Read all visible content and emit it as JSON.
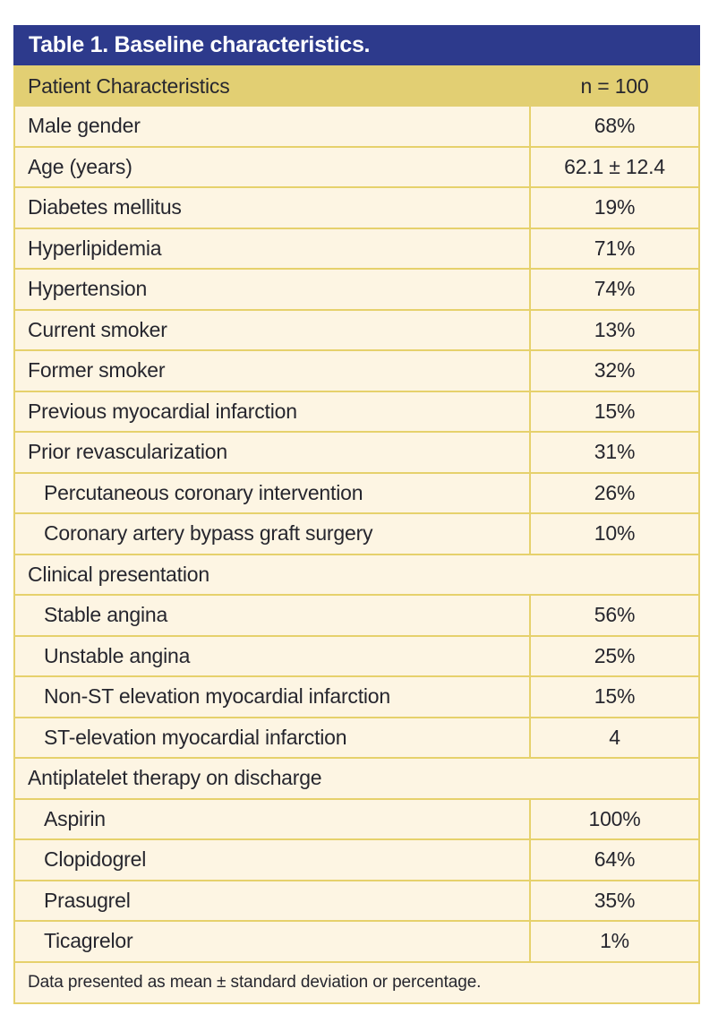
{
  "title": "Table 1. Baseline characteristics.",
  "header": {
    "label": "Patient Characteristics",
    "value": "n = 100"
  },
  "rows": [
    {
      "label": "Male gender",
      "value": "68%",
      "indent": false,
      "full": false
    },
    {
      "label": "Age (years)",
      "value": "62.1 ± 12.4",
      "indent": false,
      "full": false
    },
    {
      "label": "Diabetes mellitus",
      "value": "19%",
      "indent": false,
      "full": false
    },
    {
      "label": "Hyperlipidemia",
      "value": "71%",
      "indent": false,
      "full": false
    },
    {
      "label": "Hypertension",
      "value": "74%",
      "indent": false,
      "full": false
    },
    {
      "label": "Current smoker",
      "value": "13%",
      "indent": false,
      "full": false
    },
    {
      "label": "Former smoker",
      "value": "32%",
      "indent": false,
      "full": false
    },
    {
      "label": "Previous myocardial infarction",
      "value": "15%",
      "indent": false,
      "full": false
    },
    {
      "label": "Prior revascularization",
      "value": "31%",
      "indent": false,
      "full": false
    },
    {
      "label": "Percutaneous coronary intervention",
      "value": "26%",
      "indent": true,
      "full": false
    },
    {
      "label": "Coronary artery bypass graft surgery",
      "value": "10%",
      "indent": true,
      "full": false
    },
    {
      "label": "Clinical presentation",
      "value": "",
      "indent": false,
      "full": true
    },
    {
      "label": "Stable angina",
      "value": "56%",
      "indent": true,
      "full": false
    },
    {
      "label": "Unstable angina",
      "value": "25%",
      "indent": true,
      "full": false
    },
    {
      "label": "Non-ST elevation myocardial infarction",
      "value": "15%",
      "indent": true,
      "full": false
    },
    {
      "label": "ST-elevation myocardial infarction",
      "value": "4",
      "indent": true,
      "full": false
    },
    {
      "label": "Antiplatelet therapy on discharge",
      "value": "",
      "indent": false,
      "full": true
    },
    {
      "label": "Aspirin",
      "value": "100%",
      "indent": true,
      "full": false
    },
    {
      "label": "Clopidogrel",
      "value": "64%",
      "indent": true,
      "full": false
    },
    {
      "label": "Prasugrel",
      "value": "35%",
      "indent": true,
      "full": false
    },
    {
      "label": "Ticagrelor",
      "value": "1%",
      "indent": true,
      "full": false
    }
  ],
  "footnote": "Data presented as mean ± standard deviation or percentage.",
  "colors": {
    "header_blue": "#2d3a8c",
    "subheader_gold": "#e2cf73",
    "row_cream": "#fdf5e3",
    "border_gold": "#e6d16c",
    "text": "#26262e",
    "title_text": "#ffffff"
  }
}
